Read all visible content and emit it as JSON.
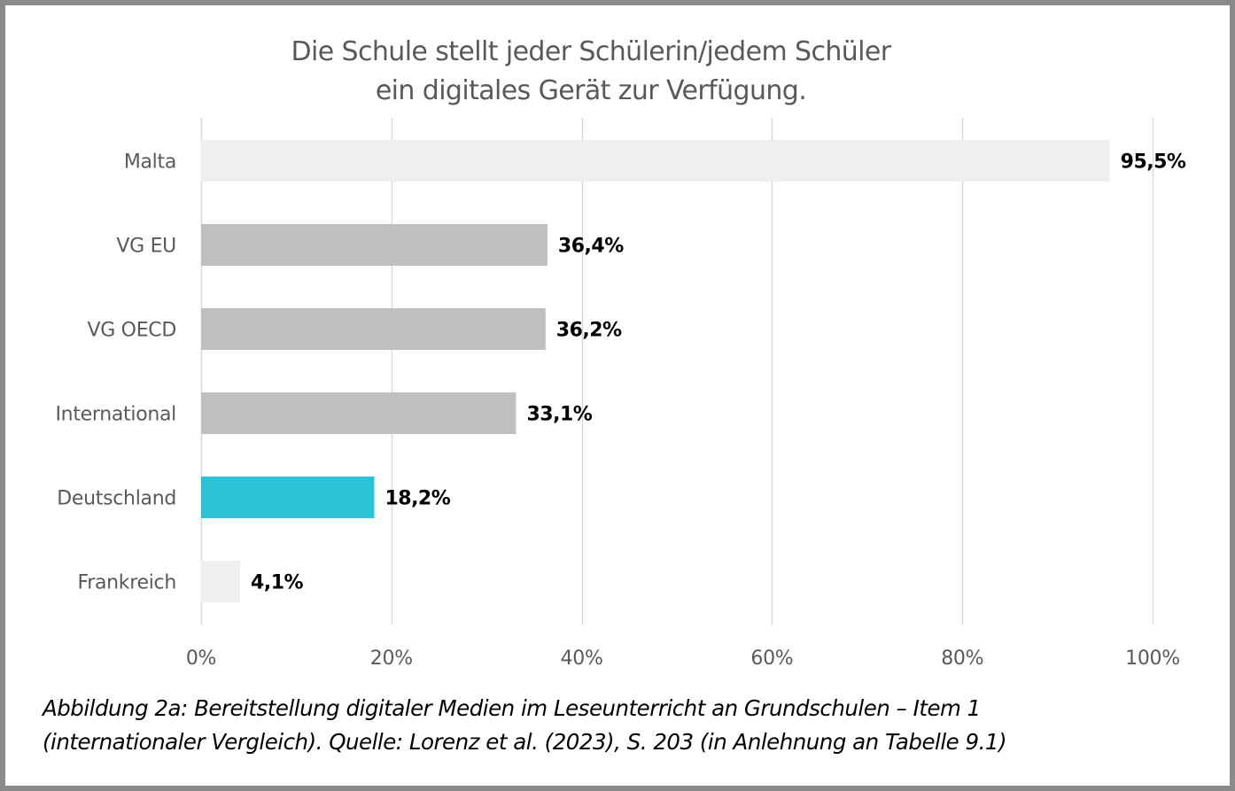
{
  "chart_data": {
    "type": "bar",
    "orientation": "horizontal",
    "title": [
      "Die Schule stellt jeder Schülerin/jedem Schüler",
      "ein digitales Gerät zur Verfügung."
    ],
    "categories": [
      "Malta",
      "VG EU",
      "VG OECD",
      "International",
      "Deutschland",
      "Frankreich"
    ],
    "values": [
      95.5,
      36.4,
      36.2,
      33.1,
      18.2,
      4.1
    ],
    "data_labels": [
      "95,5%",
      "36,4%",
      "36,2%",
      "33,1%",
      "18,2%",
      "4,1%"
    ],
    "bar_colors": [
      "#efefef",
      "#bfbfbf",
      "#bfbfbf",
      "#bfbfbf",
      "#29c2d6",
      "#efefef"
    ],
    "xlabel": "",
    "ylabel": "",
    "xlim": [
      0,
      100
    ],
    "x_ticks": [
      0,
      20,
      40,
      60,
      80,
      100
    ],
    "x_tick_labels": [
      "0%",
      "20%",
      "40%",
      "60%",
      "80%",
      "100%"
    ],
    "grid": "vertical",
    "legend": "none"
  },
  "caption": {
    "line1": "Abbildung 2a: Bereitstellung digitaler Medien im Leseunterricht an Grundschulen – Item 1",
    "line2": "(internationaler Vergleich). Quelle: Lorenz et al. (2023), S. 203 (in Anlehnung an Tabelle 9.1)"
  },
  "colors": {
    "highlight": "#29c2d6",
    "gray_bar": "#bfbfbf",
    "light_bar": "#efefef",
    "gridline": "#d9d9d9",
    "axis_text": "#595959",
    "frame": "#8a8a8a"
  }
}
